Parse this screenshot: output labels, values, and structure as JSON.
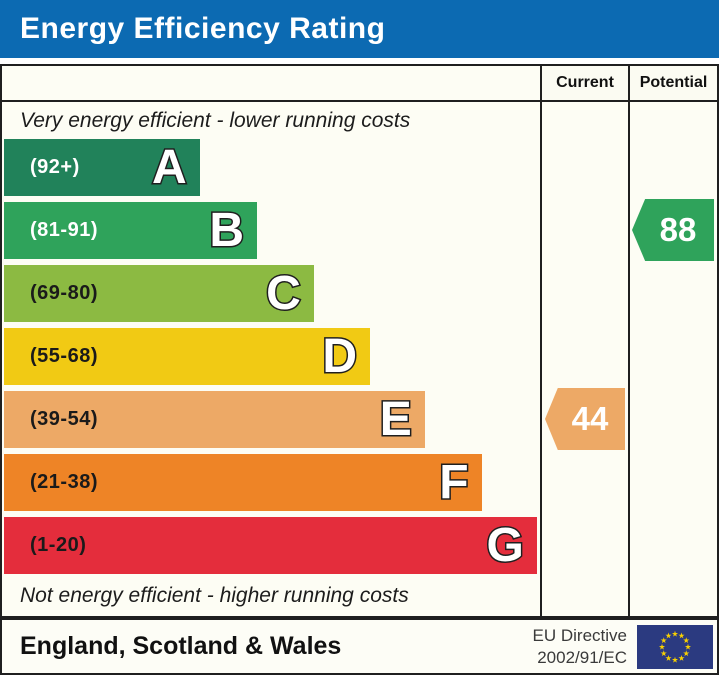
{
  "title": "Energy Efficiency Rating",
  "title_bg": "#0c6ab2",
  "header": {
    "current": "Current",
    "potential": "Potential"
  },
  "captions": {
    "top": "Very energy efficient - lower running costs",
    "bottom": "Not energy efficient - higher running costs"
  },
  "bands": [
    {
      "letter": "A",
      "range": "(92+)",
      "color": "#21825a",
      "label_color": "#ffffff",
      "width_pct": 36.5
    },
    {
      "letter": "B",
      "range": "(81-91)",
      "color": "#2fa35b",
      "label_color": "#ffffff",
      "width_pct": 47.2
    },
    {
      "letter": "C",
      "range": "(69-80)",
      "color": "#8cba42",
      "label_color": "#1a1a1a",
      "width_pct": 57.8
    },
    {
      "letter": "D",
      "range": "(55-68)",
      "color": "#f1ca14",
      "label_color": "#1a1a1a",
      "width_pct": 68.3
    },
    {
      "letter": "E",
      "range": "(39-54)",
      "color": "#eda966",
      "label_color": "#1a1a1a",
      "width_pct": 78.5
    },
    {
      "letter": "F",
      "range": "(21-38)",
      "color": "#ee8426",
      "label_color": "#1a1a1a",
      "width_pct": 89.1
    },
    {
      "letter": "G",
      "range": "(1-20)",
      "color": "#e42d3c",
      "label_color": "#1a1a1a",
      "width_pct": 99.4
    }
  ],
  "ratings": {
    "current": {
      "value": "44",
      "band_index": 4,
      "color": "#eda966"
    },
    "potential": {
      "value": "88",
      "band_index": 1,
      "color": "#2fa35b"
    }
  },
  "footer": {
    "region": "England, Scotland & Wales",
    "directive_line1": "EU Directive",
    "directive_line2": "2002/91/EC"
  },
  "eu_flag": {
    "bg": "#2b3a80",
    "star_color": "#f8d000",
    "stars": 12
  },
  "chart_data": {
    "type": "bar",
    "title": "Energy Efficiency Rating",
    "orientation": "horizontal",
    "categories": [
      "A",
      "B",
      "C",
      "D",
      "E",
      "F",
      "G"
    ],
    "band_ranges": [
      "92+",
      "81-91",
      "69-80",
      "55-68",
      "39-54",
      "21-38",
      "1-20"
    ],
    "band_colors": [
      "#21825a",
      "#2fa35b",
      "#8cba42",
      "#f1ca14",
      "#eda966",
      "#ee8426",
      "#e42d3c"
    ],
    "relative_bar_lengths_pct": [
      36.5,
      47.2,
      57.8,
      68.3,
      78.5,
      89.1,
      99.4
    ],
    "current_rating": 44,
    "current_band": "E",
    "potential_rating": 88,
    "potential_band": "B",
    "columns": [
      "Current",
      "Potential"
    ],
    "top_annotation": "Very energy efficient - lower running costs",
    "bottom_annotation": "Not energy efficient - higher running costs",
    "footer_region": "England, Scotland & Wales",
    "footer_directive": "EU Directive 2002/91/EC"
  }
}
